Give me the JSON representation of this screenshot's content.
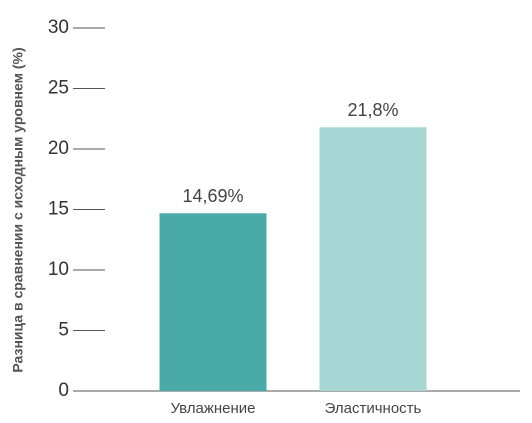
{
  "chart_data": {
    "type": "bar",
    "y_label": "Разница в сравнении с исходным уровнем (%)",
    "categories": [
      "Увлажнение",
      "Эластичность"
    ],
    "values": [
      14.69,
      21.8
    ],
    "value_labels": [
      "14,69%",
      "21,8%"
    ],
    "colors": [
      "#4aaaa8",
      "#a6d7d5"
    ],
    "ylim": [
      0,
      30
    ],
    "yticks": [
      0,
      5,
      10,
      15,
      20,
      25,
      30
    ]
  }
}
